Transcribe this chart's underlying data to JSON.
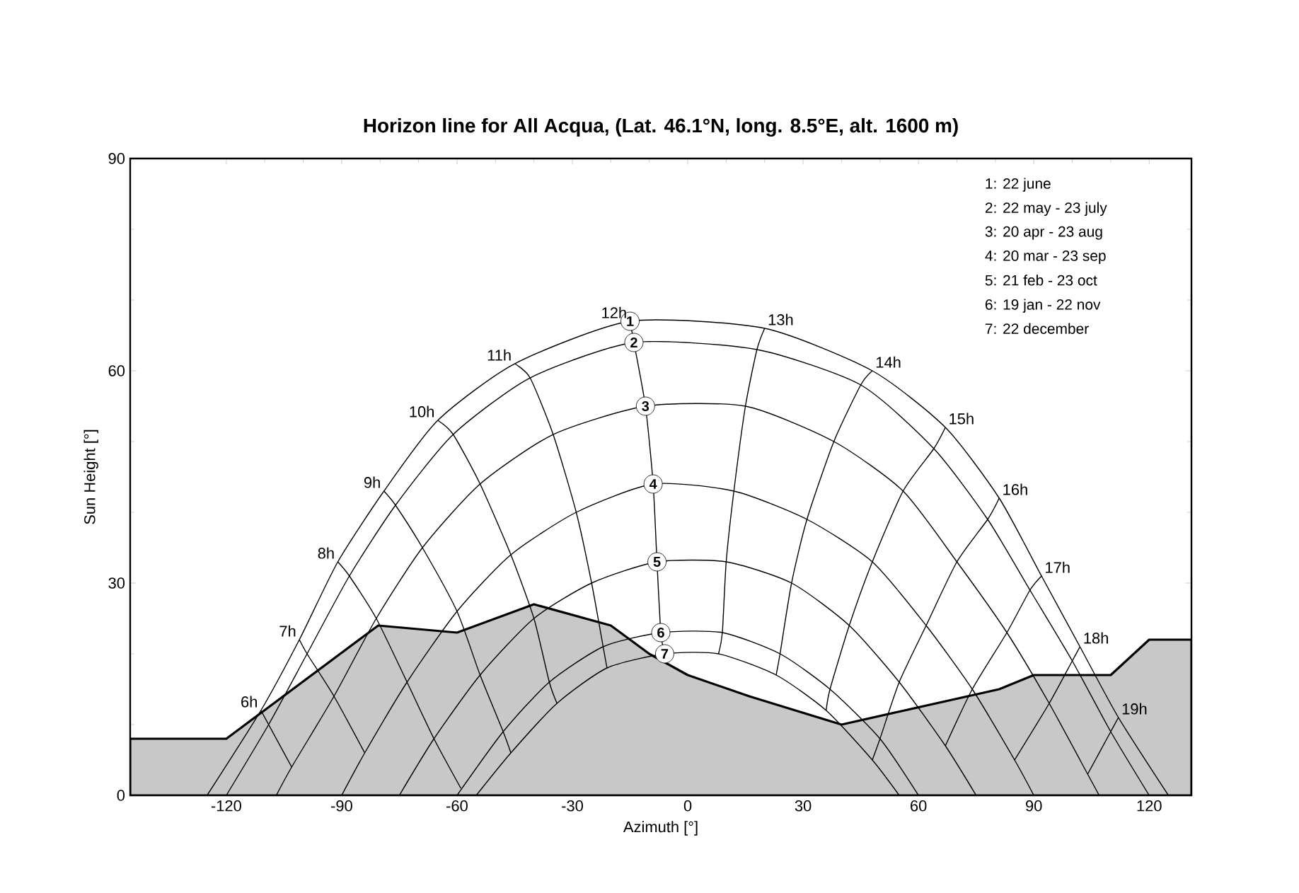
{
  "chart_data": {
    "type": "line",
    "title": "Horizon line for  All Acqua, (Lat. 46.1°N, long. 8.5°E, alt. 1600 m)",
    "xlabel": "Azimuth [°]",
    "ylabel": "Sun Height [°]",
    "xlim": [
      -145,
      131
    ],
    "ylim": [
      0,
      90
    ],
    "xticks": [
      -120,
      -90,
      -60,
      -30,
      0,
      30,
      60,
      90,
      120
    ],
    "yticks": [
      0,
      30,
      60,
      90
    ],
    "grid": false,
    "annotations": [
      "1: 22 june",
      "2: 22 may - 23 july",
      "3: 20 apr - 23 aug",
      "4: 20 mar - 23 sep",
      "5: 21 feb - 23 oct",
      "6: 19 jan - 22 nov",
      "7: 22 december"
    ],
    "series": [
      {
        "name": "1",
        "color": "#000000",
        "x": [
          -125,
          -111,
          -101,
          -91,
          -79,
          -65,
          -45,
          -15,
          20,
          48,
          67,
          81,
          92,
          102,
          112,
          125
        ],
        "values": [
          0,
          12,
          22,
          33,
          43,
          53,
          61,
          67,
          66,
          60,
          52,
          42,
          31,
          21,
          11,
          0
        ]
      },
      {
        "name": "2",
        "color": "#000000",
        "x": [
          -120,
          -109,
          -99,
          -88,
          -76,
          -61,
          -41,
          -14,
          18,
          45,
          64,
          78,
          89,
          100,
          110,
          120
        ],
        "values": [
          0,
          10,
          20,
          31,
          41,
          51,
          59,
          64,
          63,
          58,
          49,
          39,
          29,
          19,
          9,
          0
        ]
      },
      {
        "name": "3",
        "color": "#000000",
        "x": [
          -107,
          -103,
          -92,
          -81,
          -69,
          -54,
          -35,
          -11,
          15,
          38,
          56,
          70,
          83,
          94,
          104,
          107
        ],
        "values": [
          0,
          4,
          14,
          25,
          35,
          44,
          51,
          55,
          55,
          50,
          43,
          33,
          23,
          13,
          3,
          0
        ]
      },
      {
        "name": "4",
        "color": "#000000",
        "x": [
          -90,
          -84,
          -73,
          -60,
          -46,
          -29,
          -9,
          12,
          31,
          48,
          62,
          74,
          85,
          90
        ],
        "values": [
          0,
          6,
          16,
          26,
          34,
          40,
          44,
          43,
          39,
          33,
          24,
          15,
          5,
          0
        ]
      },
      {
        "name": "5",
        "color": "#000000",
        "x": [
          -75,
          -66,
          -54,
          -40,
          -25,
          -8,
          10,
          27,
          42,
          55,
          67,
          75
        ],
        "values": [
          0,
          8,
          17,
          25,
          30,
          33,
          33,
          30,
          24,
          16,
          7,
          0
        ]
      },
      {
        "name": "6",
        "color": "#000000",
        "x": [
          -60,
          -48,
          -36,
          -22,
          -7,
          9,
          24,
          37,
          50,
          60
        ],
        "values": [
          0,
          9,
          16,
          21,
          23,
          23,
          20,
          15,
          8,
          0
        ]
      },
      {
        "name": "7",
        "color": "#000000",
        "x": [
          -55,
          -46,
          -34,
          -21,
          -6,
          8,
          23,
          36,
          48,
          55
        ],
        "values": [
          0,
          6,
          13,
          18,
          20,
          20,
          17,
          12,
          5,
          0
        ]
      },
      {
        "name": "6h",
        "color": "#000000",
        "x": [
          -111,
          -109,
          -103
        ],
        "values": [
          12,
          10,
          4
        ]
      },
      {
        "name": "7h",
        "color": "#000000",
        "x": [
          -101,
          -99,
          -92,
          -84
        ],
        "values": [
          22,
          20,
          14,
          6
        ]
      },
      {
        "name": "8h",
        "color": "#000000",
        "x": [
          -91,
          -88,
          -81,
          -73,
          -66,
          -59
        ],
        "values": [
          33,
          31,
          25,
          16,
          8,
          1
        ]
      },
      {
        "name": "9h",
        "color": "#000000",
        "x": [
          -79,
          -76,
          -69,
          -60,
          -54,
          -48,
          -46
        ],
        "values": [
          43,
          41,
          35,
          26,
          17,
          9,
          6
        ]
      },
      {
        "name": "10h",
        "color": "#000000",
        "x": [
          -65,
          -61,
          -54,
          -46,
          -40,
          -36,
          -34
        ],
        "values": [
          53,
          51,
          44,
          34,
          25,
          16,
          13
        ]
      },
      {
        "name": "11h",
        "color": "#000000",
        "x": [
          -45,
          -41,
          -35,
          -29,
          -25,
          -22,
          -21
        ],
        "values": [
          61,
          59,
          51,
          40,
          30,
          21,
          18
        ]
      },
      {
        "name": "12h",
        "color": "#000000",
        "x": [
          -15,
          -14,
          -11,
          -9,
          -8,
          -7,
          -6
        ],
        "values": [
          67,
          64,
          55,
          44,
          33,
          23,
          20
        ]
      },
      {
        "name": "13h",
        "color": "#000000",
        "x": [
          20,
          18,
          15,
          12,
          10,
          9,
          8
        ],
        "values": [
          66,
          63,
          55,
          43,
          33,
          23,
          20
        ]
      },
      {
        "name": "14h",
        "color": "#000000",
        "x": [
          48,
          45,
          38,
          31,
          27,
          24,
          23
        ],
        "values": [
          60,
          58,
          50,
          39,
          30,
          20,
          17
        ]
      },
      {
        "name": "15h",
        "color": "#000000",
        "x": [
          67,
          64,
          56,
          48,
          42,
          37,
          36
        ],
        "values": [
          52,
          49,
          43,
          33,
          24,
          15,
          12
        ]
      },
      {
        "name": "16h",
        "color": "#000000",
        "x": [
          81,
          78,
          70,
          62,
          55,
          50,
          48
        ],
        "values": [
          42,
          39,
          33,
          24,
          16,
          8,
          5
        ]
      },
      {
        "name": "17h",
        "color": "#000000",
        "x": [
          92,
          89,
          83,
          74,
          67
        ],
        "values": [
          31,
          29,
          23,
          15,
          7
        ]
      },
      {
        "name": "18h",
        "color": "#000000",
        "x": [
          102,
          100,
          94,
          85
        ],
        "values": [
          21,
          19,
          13,
          5
        ]
      },
      {
        "name": "19h",
        "color": "#000000",
        "x": [
          112,
          110,
          104
        ],
        "values": [
          11,
          9,
          3
        ]
      },
      {
        "type": "area",
        "color": "#c8c8c8",
        "x": [
          -145,
          -120,
          -80.5,
          -60,
          -40,
          -20,
          -10,
          0,
          16,
          40,
          81,
          90,
          110,
          120,
          131
        ],
        "values": [
          8,
          8,
          24,
          23,
          27,
          24,
          20,
          17,
          14,
          10,
          15,
          17,
          17,
          22,
          22
        ]
      }
    ]
  }
}
